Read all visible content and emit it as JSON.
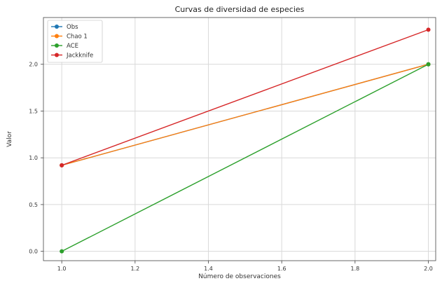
{
  "chart_data": {
    "type": "line",
    "title": "Curvas de diversidad de especies",
    "xlabel": "Número de observaciones",
    "ylabel": "Valor",
    "x": [
      1.0,
      2.0
    ],
    "xlim": [
      0.95,
      2.02
    ],
    "ylim": [
      -0.1,
      2.5
    ],
    "xticks": [
      1.0,
      1.2,
      1.4,
      1.6,
      1.8,
      2.0
    ],
    "xtick_labels": [
      "1.0",
      "1.2",
      "1.4",
      "1.6",
      "1.8",
      "2.0"
    ],
    "yticks": [
      0.0,
      0.5,
      1.0,
      1.5,
      2.0
    ],
    "ytick_labels": [
      "0.0",
      "0.5",
      "1.0",
      "1.5",
      "2.0"
    ],
    "grid": true,
    "legend_position": "top-left",
    "series": [
      {
        "name": "Obs",
        "color": "#1f77b4",
        "values": [
          0.92,
          2.0
        ]
      },
      {
        "name": "Chao 1",
        "color": "#ff7f0e",
        "values": [
          0.92,
          2.0
        ]
      },
      {
        "name": "ACE",
        "color": "#2ca02c",
        "values": [
          0.0,
          2.0
        ]
      },
      {
        "name": "Jackknife",
        "color": "#d62728",
        "values": [
          0.92,
          2.37
        ]
      }
    ]
  }
}
